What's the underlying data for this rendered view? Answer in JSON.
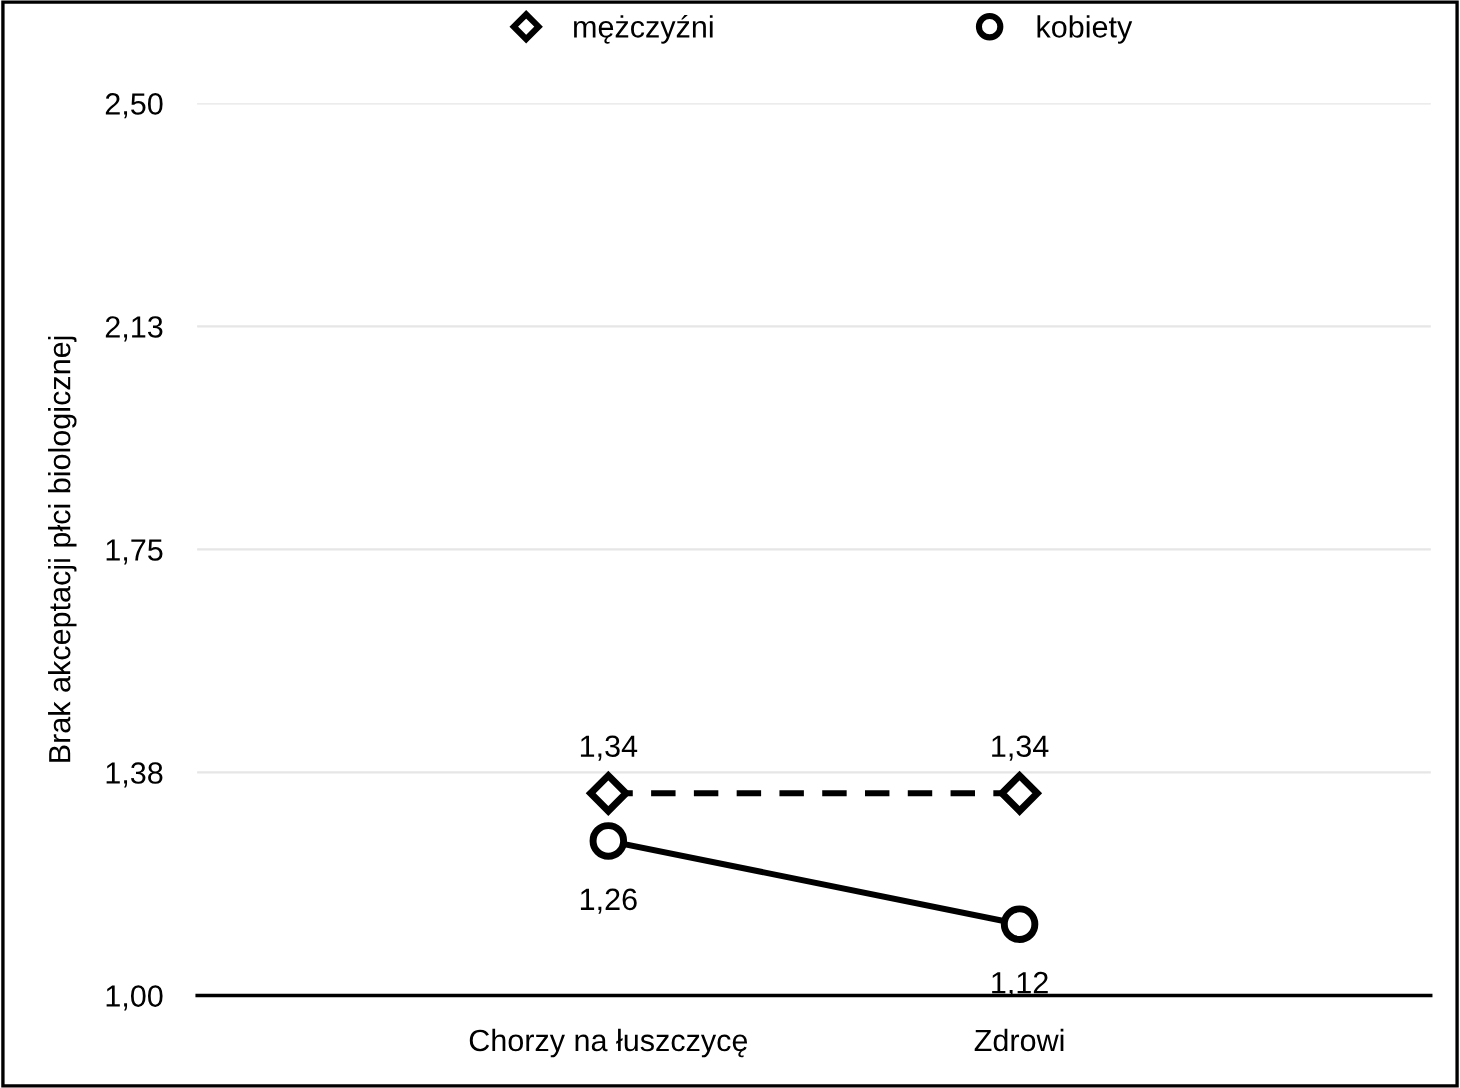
{
  "chart_data": {
    "type": "line",
    "ylabel": "Brak akceptacji płci biologicznej",
    "categories": [
      "Chorzy na łuszczycę",
      "Zdrowi"
    ],
    "series": [
      {
        "name": "mężczyźni",
        "color": "#000000",
        "values": [
          1.34,
          1.34
        ],
        "marker": "diamond",
        "line_style": "dashed",
        "value_labels": [
          "1,34",
          "1,34"
        ]
      },
      {
        "name": "kobiety",
        "color": "#000000",
        "values": [
          1.26,
          1.12
        ],
        "marker": "circle",
        "line_style": "solid",
        "value_labels": [
          "1,26",
          "1,12"
        ]
      }
    ],
    "ylim": [
      1.0,
      2.5
    ],
    "yticks": [
      {
        "value": 1.0,
        "label": "1,00"
      },
      {
        "value": 1.375,
        "label": "1,38"
      },
      {
        "value": 1.75,
        "label": "1,75"
      },
      {
        "value": 2.125,
        "label": "2,13"
      },
      {
        "value": 2.5,
        "label": "2,50"
      }
    ],
    "grid": "y",
    "legend": "top"
  }
}
